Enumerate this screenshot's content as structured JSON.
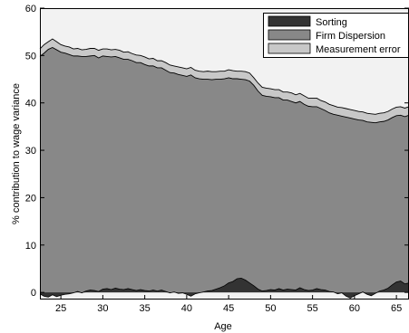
{
  "chart_data": {
    "type": "area",
    "title": "",
    "xlabel": "Age",
    "ylabel": "% contribution to wage variance",
    "xlim": [
      22.5,
      66.5
    ],
    "ylim": [
      -1.5,
      60
    ],
    "xticks": [
      25,
      30,
      35,
      40,
      45,
      50,
      55,
      60,
      65
    ],
    "yticks": [
      0,
      10,
      20,
      30,
      40,
      50,
      60
    ],
    "legend_position": "top-right",
    "series": [
      {
        "name": "Sorting",
        "color": "#333333",
        "x": [
          22.5,
          23,
          23.5,
          24,
          24.5,
          25,
          25.5,
          26,
          26.5,
          27,
          27.5,
          28,
          28.5,
          29,
          29.5,
          30,
          30.5,
          31,
          31.5,
          32,
          32.5,
          33,
          33.5,
          34,
          34.5,
          35,
          35.5,
          36,
          36.5,
          37,
          37.5,
          38,
          38.5,
          39,
          39.5,
          40,
          40.5,
          41,
          41.5,
          42,
          42.5,
          43,
          43.5,
          44,
          44.5,
          45,
          45.5,
          46,
          46.5,
          47,
          47.5,
          48,
          48.5,
          49,
          49.5,
          50,
          50.5,
          51,
          51.5,
          52,
          52.5,
          53,
          53.5,
          54,
          54.5,
          55,
          55.5,
          56,
          56.5,
          57,
          57.5,
          58,
          58.5,
          59,
          59.5,
          60,
          60.5,
          61,
          61.5,
          62,
          62.5,
          63,
          63.5,
          64,
          64.5,
          65,
          65.5,
          66,
          66.5
        ],
        "values": [
          -0.3,
          -0.8,
          -1.0,
          -0.5,
          -0.9,
          -0.6,
          -0.4,
          -0.3,
          -0.1,
          0.2,
          -0.1,
          0.3,
          0.5,
          0.4,
          0.2,
          0.7,
          0.8,
          0.6,
          0.9,
          0.7,
          0.6,
          0.8,
          0.6,
          0.4,
          0.6,
          0.4,
          0.3,
          0.5,
          0.3,
          0.5,
          0.2,
          -0.1,
          0.1,
          -0.2,
          -0.1,
          -0.4,
          -0.8,
          -0.3,
          -0.1,
          0.1,
          0.3,
          0.4,
          0.7,
          1.0,
          1.4,
          2.0,
          2.3,
          2.9,
          3.0,
          2.6,
          2.0,
          1.4,
          0.7,
          0.3,
          0.4,
          0.6,
          0.5,
          0.8,
          0.5,
          0.7,
          0.6,
          0.5,
          1.0,
          0.6,
          0.4,
          0.5,
          0.8,
          0.6,
          0.5,
          0.2,
          0.1,
          -0.3,
          -0.1,
          -0.8,
          -1.2,
          -0.7,
          -0.3,
          0.1,
          -0.4,
          -0.7,
          -0.2,
          0.3,
          0.5,
          0.9,
          1.6,
          2.2,
          2.4,
          1.8,
          2.0
        ]
      },
      {
        "name": "Firm Dispersion",
        "color": "#888888",
        "x": [
          22.5,
          23,
          23.5,
          24,
          24.5,
          25,
          25.5,
          26,
          26.5,
          27,
          27.5,
          28,
          28.5,
          29,
          29.5,
          30,
          30.5,
          31,
          31.5,
          32,
          32.5,
          33,
          33.5,
          34,
          34.5,
          35,
          35.5,
          36,
          36.5,
          37,
          37.5,
          38,
          38.5,
          39,
          39.5,
          40,
          40.5,
          41,
          41.5,
          42,
          42.5,
          43,
          43.5,
          44,
          44.5,
          45,
          45.5,
          46,
          46.5,
          47,
          47.5,
          48,
          48.5,
          49,
          49.5,
          50,
          50.5,
          51,
          51.5,
          52,
          52.5,
          53,
          53.5,
          54,
          54.5,
          55,
          55.5,
          56,
          56.5,
          57,
          57.5,
          58,
          58.5,
          59,
          59.5,
          60,
          60.5,
          61,
          61.5,
          62,
          62.5,
          63,
          63.5,
          64,
          64.5,
          65,
          65.5,
          66,
          66.5
        ],
        "values": [
          49.8,
          50.5,
          51.3,
          51.7,
          51.2,
          50.7,
          50.5,
          50.2,
          49.9,
          49.7,
          49.8,
          49.5,
          49.4,
          49.6,
          49.3,
          49.2,
          49.0,
          49.1,
          48.9,
          48.8,
          48.6,
          48.4,
          48.3,
          48.1,
          47.9,
          47.7,
          47.5,
          47.3,
          47.1,
          46.9,
          46.7,
          46.4,
          46.2,
          46.0,
          45.8,
          45.6,
          45.9,
          45.3,
          45.1,
          44.9,
          44.7,
          44.5,
          44.3,
          44.0,
          43.7,
          43.3,
          42.8,
          42.2,
          42.0,
          42.3,
          42.6,
          42.3,
          41.8,
          41.3,
          41.0,
          40.7,
          40.6,
          40.3,
          40.1,
          39.9,
          39.7,
          39.5,
          39.3,
          39.1,
          38.9,
          38.7,
          38.4,
          38.2,
          37.9,
          37.7,
          37.5,
          37.4,
          37.2,
          37.0,
          36.8,
          36.6,
          36.4,
          36.2,
          36.0,
          35.9,
          35.8,
          35.7,
          35.6,
          35.5,
          35.3,
          35.1,
          35.0,
          35.3,
          35.4
        ]
      },
      {
        "name": "Measurement error",
        "color": "#c8c8c8",
        "x": [
          22.5,
          23,
          23.5,
          24,
          24.5,
          25,
          25.5,
          26,
          26.5,
          27,
          27.5,
          28,
          28.5,
          29,
          29.5,
          30,
          30.5,
          31,
          31.5,
          32,
          32.5,
          33,
          33.5,
          34,
          34.5,
          35,
          35.5,
          36,
          36.5,
          37,
          37.5,
          38,
          38.5,
          39,
          39.5,
          40,
          40.5,
          41,
          41.5,
          42,
          42.5,
          43,
          43.5,
          44,
          44.5,
          45,
          45.5,
          46,
          46.5,
          47,
          47.5,
          48,
          48.5,
          49,
          49.5,
          50,
          50.5,
          51,
          51.5,
          52,
          52.5,
          53,
          53.5,
          54,
          54.5,
          55,
          55.5,
          56,
          56.5,
          57,
          57.5,
          58,
          58.5,
          59,
          59.5,
          60,
          60.5,
          61,
          61.5,
          62,
          62.5,
          63,
          63.5,
          64,
          64.5,
          65,
          65.5,
          66,
          66.5
        ],
        "values": [
          1.6,
          1.8,
          1.6,
          1.8,
          1.7,
          1.6,
          1.5,
          1.6,
          1.5,
          1.6,
          1.4,
          1.5,
          1.6,
          1.5,
          1.6,
          1.5,
          1.6,
          1.5,
          1.5,
          1.6,
          1.5,
          1.6,
          1.5,
          1.6,
          1.5,
          1.6,
          1.5,
          1.6,
          1.5,
          1.5,
          1.6,
          1.6,
          1.5,
          1.6,
          1.6,
          1.6,
          1.6,
          1.6,
          1.6,
          1.6,
          1.7,
          1.7,
          1.6,
          1.7,
          1.6,
          1.7,
          1.7,
          1.6,
          1.7,
          1.7,
          1.7,
          1.6,
          1.7,
          1.7,
          1.7,
          1.7,
          1.7,
          1.7,
          1.7,
          1.7,
          1.8,
          1.7,
          1.7,
          1.8,
          1.7,
          1.8,
          1.8,
          1.7,
          1.8,
          1.8,
          1.8,
          1.7,
          1.8,
          1.8,
          1.8,
          1.8,
          1.8,
          1.8,
          1.8,
          1.8,
          1.8,
          1.8,
          1.8,
          1.8,
          1.8,
          1.8,
          1.8,
          1.8,
          1.8
        ]
      }
    ],
    "background_color": "#f2f2f2"
  }
}
